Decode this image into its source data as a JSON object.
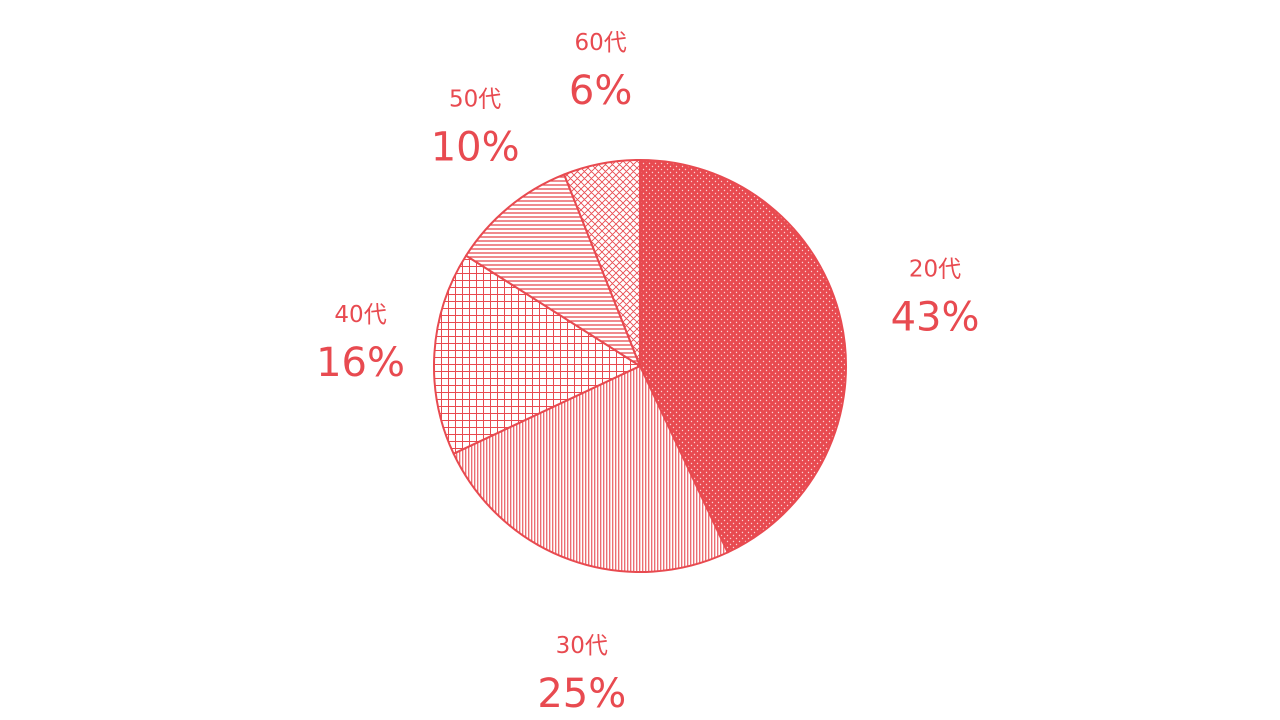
{
  "chart_data": {
    "type": "pie",
    "title": "",
    "accent_color": "#e84a50",
    "direction": "clockwise",
    "start_angle": "top",
    "slices": [
      {
        "label": "20代",
        "value": 43,
        "display": "43%",
        "pattern": "dots"
      },
      {
        "label": "30代",
        "value": 25,
        "display": "25%",
        "pattern": "vertical-lines"
      },
      {
        "label": "40代",
        "value": 16,
        "display": "16%",
        "pattern": "grid"
      },
      {
        "label": "50代",
        "value": 10,
        "display": "10%",
        "pattern": "horizontal-lines"
      },
      {
        "label": "60代",
        "value": 6,
        "display": "6%",
        "pattern": "crosshatch"
      }
    ]
  }
}
